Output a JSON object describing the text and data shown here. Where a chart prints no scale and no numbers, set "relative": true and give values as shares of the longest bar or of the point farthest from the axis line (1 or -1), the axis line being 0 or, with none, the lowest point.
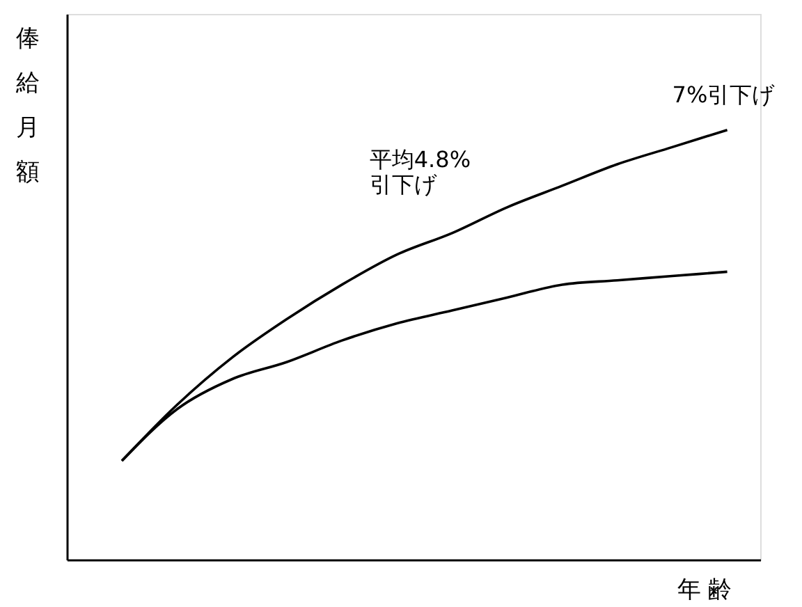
{
  "chart_data": {
    "type": "line",
    "relative": true,
    "marker": "none",
    "line_style": "solid",
    "xlabel": "年 齢",
    "ylabel": "俸給月額",
    "categories": [
      null,
      null,
      null,
      null,
      null,
      null,
      null,
      null,
      null,
      null,
      null,
      null
    ],
    "series": [
      {
        "color": "#000000",
        "values": [
          0.23,
          0.36,
          0.47,
          0.56,
          0.64,
          0.71,
          0.76,
          0.82,
          0.87,
          0.92,
          0.96,
          1.0
        ]
      },
      {
        "color": "#000000",
        "values": [
          0.23,
          0.35,
          0.42,
          0.46,
          0.51,
          0.55,
          0.58,
          0.61,
          0.64,
          0.65,
          0.66,
          0.67
        ]
      }
    ],
    "annotations": [
      "平均4.8%\n引下げ",
      "7%引下げ"
    ]
  }
}
